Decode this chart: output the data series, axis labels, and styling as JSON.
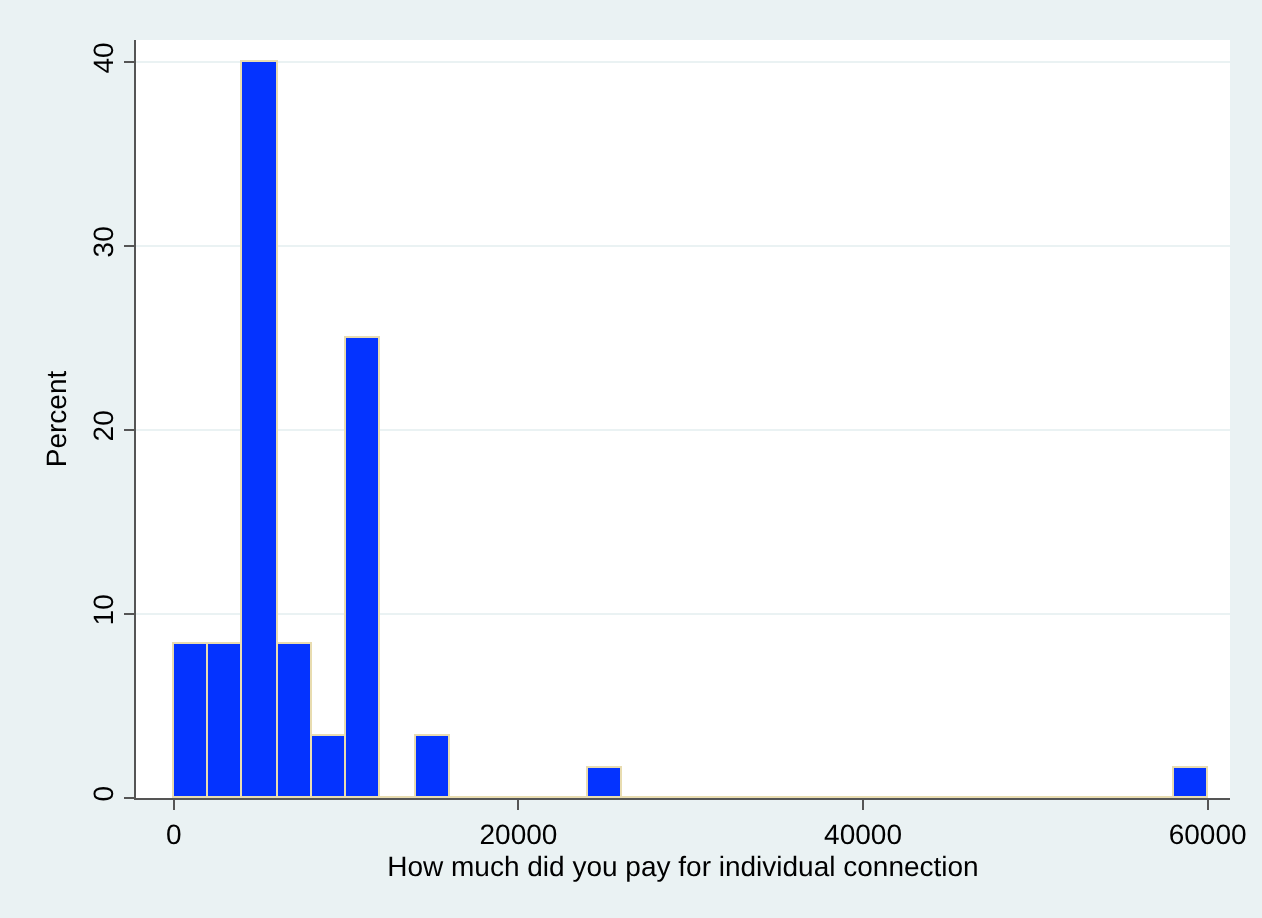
{
  "chart_data": {
    "type": "histogram",
    "xlabel": "How much did you pay for individual connection",
    "ylabel": "Percent",
    "bins": [
      0,
      2000,
      4000,
      6000,
      8000,
      10000,
      12000,
      14000,
      16000,
      18000,
      20000,
      22000,
      24000,
      26000,
      28000,
      30000,
      32000,
      34000,
      36000,
      38000,
      40000,
      42000,
      44000,
      46000,
      48000,
      50000,
      52000,
      54000,
      56000,
      58000,
      60000
    ],
    "values": [
      8.33,
      8.33,
      40,
      8.33,
      3.33,
      25,
      0,
      3.33,
      0,
      0,
      0,
      0,
      1.67,
      0,
      0,
      0,
      0,
      0,
      0,
      0,
      0,
      0,
      0,
      0,
      0,
      0,
      0,
      0,
      0,
      1.67
    ],
    "color": "#0433ff",
    "xlim": [
      -2200,
      61300
    ],
    "xticks": [
      0,
      20000,
      40000,
      60000
    ],
    "ylim": [
      0,
      41.2
    ],
    "yticks": [
      0,
      10,
      20,
      30,
      40
    ],
    "grid": "y",
    "legend": false
  }
}
